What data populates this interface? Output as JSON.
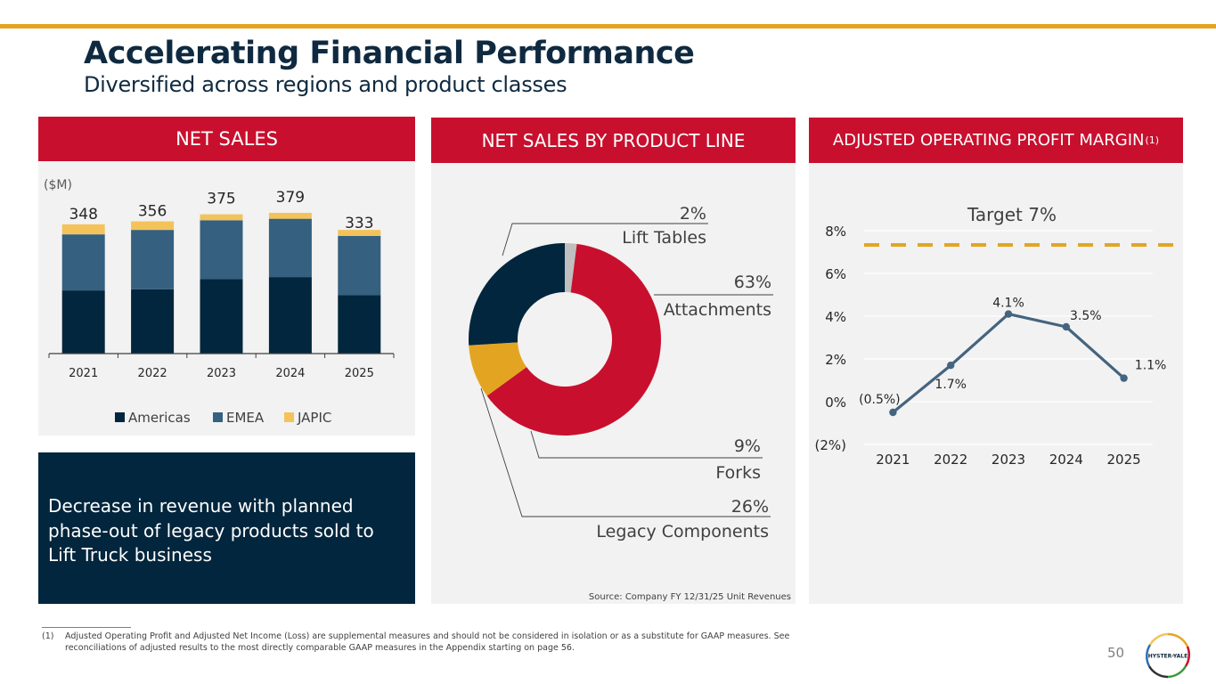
{
  "slide": {
    "title": "Accelerating Financial Performance",
    "subtitle": "Diversified across regions and product classes",
    "page_number": "50",
    "logo_text": "HYSTER-YALE",
    "accent_color": "#e3a521",
    "brand_red": "#c8102e",
    "brand_navy": "#02263d"
  },
  "panels": {
    "net_sales": {
      "header": "NET SALES",
      "unit_label": "($M)"
    },
    "product_line": {
      "header": "NET SALES BY PRODUCT LINE",
      "source": "Source: Company FY 12/31/25 Unit Revenues"
    },
    "op_margin": {
      "header": "ADJUSTED OPERATING PROFIT MARGIN",
      "header_sup": "(1)",
      "target_label": "Target 7%"
    }
  },
  "callout": {
    "text": "Decrease in revenue with planned phase-out of legacy products sold to Lift Truck business"
  },
  "footnote": {
    "marker": "(1)",
    "text": "Adjusted Operating Profit and Adjusted Net Income (Loss) are supplemental measures and should not be considered in isolation or as a substitute for GAAP measures. See reconciliations of adjusted results to the most directly comparable GAAP measures in the Appendix starting on page 56."
  },
  "chart_data": [
    {
      "type": "bar",
      "stacked": true,
      "title": "NET SALES",
      "ylabel": "($M)",
      "categories": [
        "2021",
        "2022",
        "2023",
        "2024",
        "2025"
      ],
      "totals": [
        348,
        356,
        375,
        379,
        333
      ],
      "total_labels": [
        "348",
        "356",
        "375",
        "379",
        "333"
      ],
      "series": [
        {
          "name": "Americas",
          "color": "#02263d",
          "values": [
            170,
            173,
            201,
            206,
            157
          ]
        },
        {
          "name": "EMEA",
          "color": "#35607f",
          "values": [
            151,
            160,
            158,
            157,
            160
          ]
        },
        {
          "name": "JAPIC",
          "color": "#f3c35a",
          "values": [
            27,
            23,
            16,
            16,
            16
          ]
        }
      ],
      "ylim": [
        0,
        400
      ],
      "grid": false,
      "legend": "bottom"
    },
    {
      "type": "pie",
      "donut": true,
      "title": "NET SALES BY PRODUCT LINE",
      "slices": [
        {
          "label": "Lift Tables",
          "value": 2,
          "pct_label": "2%",
          "color": "#bfbfbf"
        },
        {
          "label": "Attachments",
          "value": 63,
          "pct_label": "63%",
          "color": "#c8102e"
        },
        {
          "label": "Forks",
          "value": 9,
          "pct_label": "9%",
          "color": "#e3a521"
        },
        {
          "label": "Legacy Components",
          "value": 26,
          "pct_label": "26%",
          "color": "#02263d"
        }
      ],
      "legend": "callout-labels-right"
    },
    {
      "type": "line",
      "title": "ADJUSTED OPERATING PROFIT MARGIN",
      "x": [
        "2021",
        "2022",
        "2023",
        "2024",
        "2025"
      ],
      "series": [
        {
          "name": "Adjusted Operating Profit Margin",
          "color": "#44647f",
          "values": [
            -0.5,
            1.7,
            4.1,
            3.5,
            1.1
          ],
          "labels": [
            "(0.5%)",
            "1.7%",
            "4.1%",
            "3.5%",
            "1.1%"
          ]
        }
      ],
      "target": {
        "label": "Target 7%",
        "value": 7,
        "color": "#e3a521",
        "style": "dashed"
      },
      "yticks": [
        -2,
        0,
        2,
        4,
        6,
        8
      ],
      "ytick_labels": [
        "(2%)",
        "0%",
        "2%",
        "4%",
        "6%",
        "8%"
      ],
      "ylim": [
        -2,
        8
      ],
      "grid": true,
      "legend": "none"
    }
  ]
}
